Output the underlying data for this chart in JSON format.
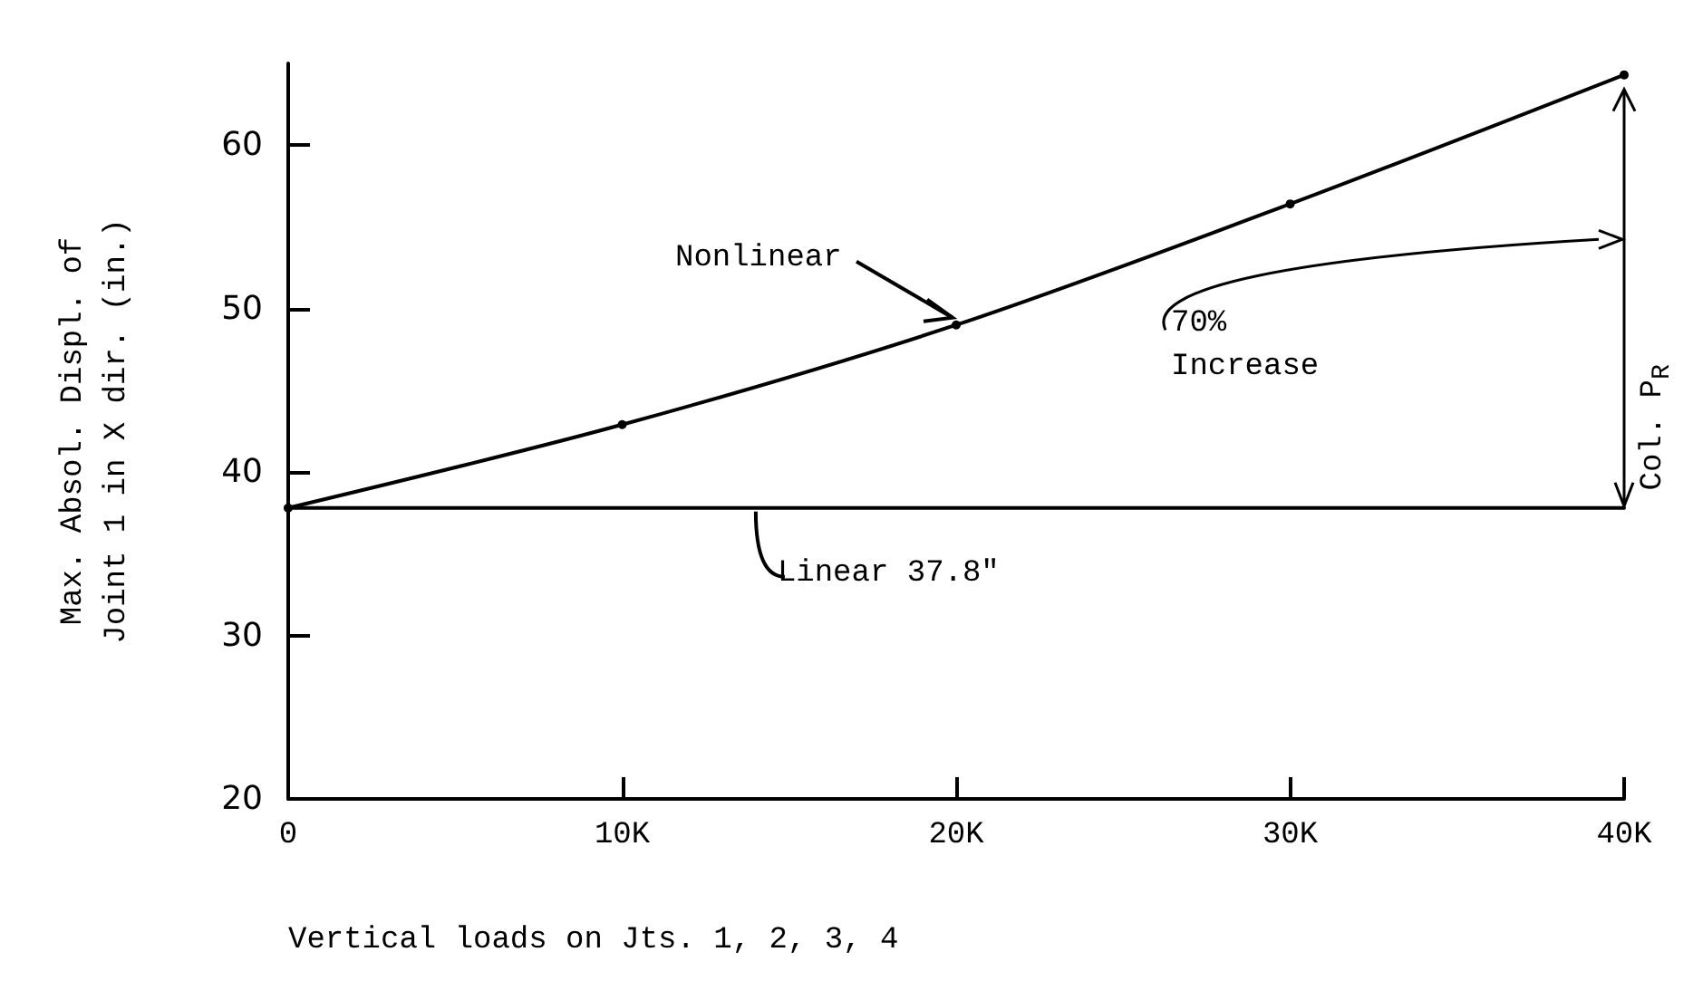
{
  "chart_data": {
    "type": "line",
    "xlabel": "Vertical loads on Jts. 1, 2, 3, 4",
    "ylabel": "Max. Absol. Displ. of\nJoint 1 in X dir. (in.)",
    "x": [
      0,
      10000,
      20000,
      30000,
      40000
    ],
    "series": [
      {
        "color": "#000000",
        "values": [
          37.8,
          42.9,
          49.0,
          56.4,
          64.3
        ],
        "marker": "circle"
      },
      {
        "color": "#000000",
        "x": [
          0,
          40000
        ],
        "values": [
          37.8,
          37.8
        ],
        "marker": "none"
      }
    ],
    "xlim": [
      0,
      40000
    ],
    "xticks": [
      0,
      {
        "value": 10000,
        "label": "10K"
      },
      {
        "value": 20000,
        "label": "20K"
      },
      {
        "value": 30000,
        "label": "30K"
      },
      {
        "value": 40000,
        "label": "40K"
      }
    ],
    "ylim": [
      20,
      65
    ],
    "yticks": [
      20,
      30,
      40,
      50,
      60
    ],
    "annotations": [
      {
        "text": "Nonlinear",
        "x": 20000,
        "y": 49.0
      },
      {
        "text": "Linear 37.8\"",
        "x": 14000,
        "y": 37.8
      },
      "70% Increase",
      "Col. P$_{R}$"
    ],
    "line_style": "solid"
  }
}
